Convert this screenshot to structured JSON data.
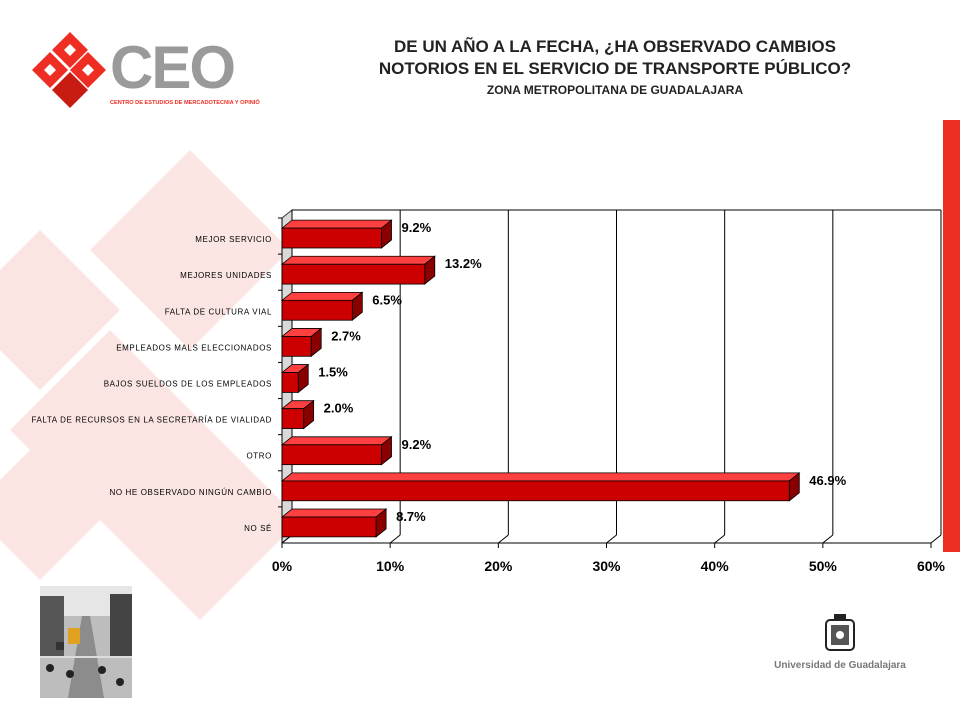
{
  "logo": {
    "text": "CEO",
    "tagline": "CENTRO DE ESTUDIOS DE MERCADOTECNIA Y OPINIÓN",
    "color": "#ee2e22"
  },
  "title": {
    "line1": "DE UN AÑO A LA FECHA, ¿HA OBSERVADO CAMBIOS",
    "line2": "NOTORIOS EN EL SERVICIO DE TRANSPORTE PÚBLICO?",
    "subtitle": "ZONA METROPOLITANA DE GUADALAJARA"
  },
  "chart_data": {
    "type": "bar",
    "orientation": "horizontal",
    "categories": [
      "MEJOR SERVICIO",
      "MEJORES UNIDADES",
      "FALTA DE CULTURA VIAL",
      "EMPLEADOS MALS ELECCIONADOS",
      "BAJOS SUELDOS DE LOS EMPLEADOS",
      "FALTA DE RECURSOS EN LA SECRETARÍA DE VIALIDAD",
      "OTRO",
      "NO HE OBSERVADO NINGÚN CAMBIO",
      "NO SÉ"
    ],
    "values": [
      9.2,
      13.2,
      6.5,
      2.7,
      1.5,
      2.0,
      9.2,
      46.9,
      8.7
    ],
    "value_labels": [
      "9.2%",
      "13.2%",
      "6.5%",
      "2.7%",
      "1.5%",
      "2.0%",
      "9.2%",
      "46.9%",
      "8.7%"
    ],
    "xlim": [
      0,
      60
    ],
    "x_ticks": [
      "0%",
      "10%",
      "20%",
      "30%",
      "40%",
      "50%",
      "60%"
    ],
    "grid": true,
    "bar_color": "#cc0000"
  },
  "footer": {
    "university": "Universidad de Guadalajara"
  }
}
